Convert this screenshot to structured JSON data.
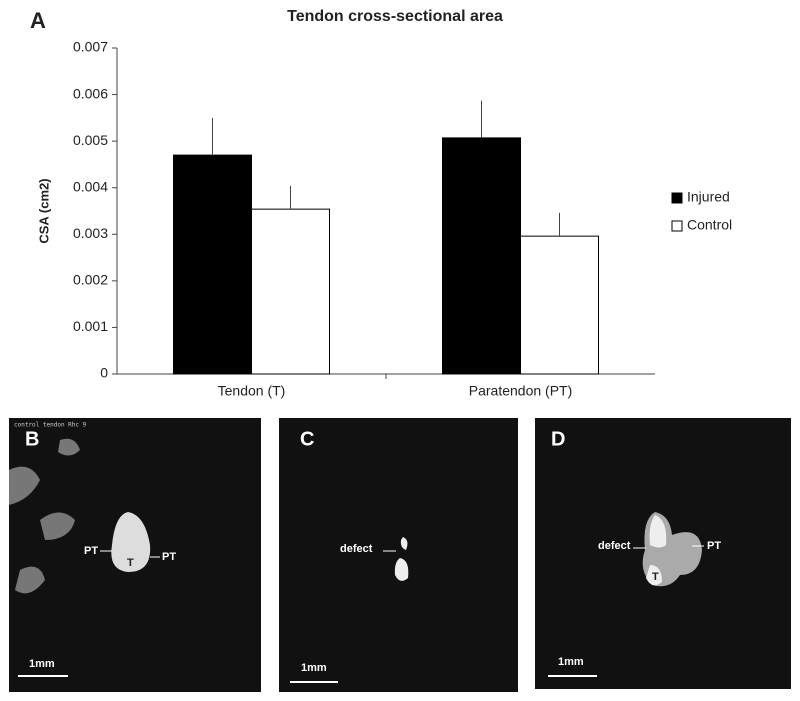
{
  "chart_data": {
    "type": "bar",
    "title": "Tendon cross-sectional area",
    "y_label": "CSA (cm2)",
    "categories": [
      "Tendon (T)",
      "Paratendon (PT)"
    ],
    "series": [
      {
        "name": "Injured",
        "color": "#000000",
        "values": [
          0.0047,
          0.00507
        ],
        "errors": [
          0.0008,
          0.0008
        ]
      },
      {
        "name": "Control",
        "color": "#ffffff",
        "values": [
          0.00354,
          0.00296
        ],
        "errors": [
          0.0005,
          0.0005
        ]
      }
    ],
    "ylim": [
      0,
      0.007
    ],
    "yticks": [
      0,
      0.001,
      0.002,
      0.003,
      0.004,
      0.005,
      0.006,
      0.007
    ],
    "grid": false,
    "legend": "right"
  },
  "figure_label": "A",
  "panels": [
    {
      "letter": "B",
      "caption": "control tendon Rhc 9",
      "labels": [
        "PT",
        "T",
        "PT"
      ],
      "scale": "1mm"
    },
    {
      "letter": "C",
      "labels": [
        "defect"
      ],
      "scale": "1mm"
    },
    {
      "letter": "D",
      "labels": [
        "defect",
        "T",
        "PT"
      ],
      "scale": "1mm"
    }
  ]
}
